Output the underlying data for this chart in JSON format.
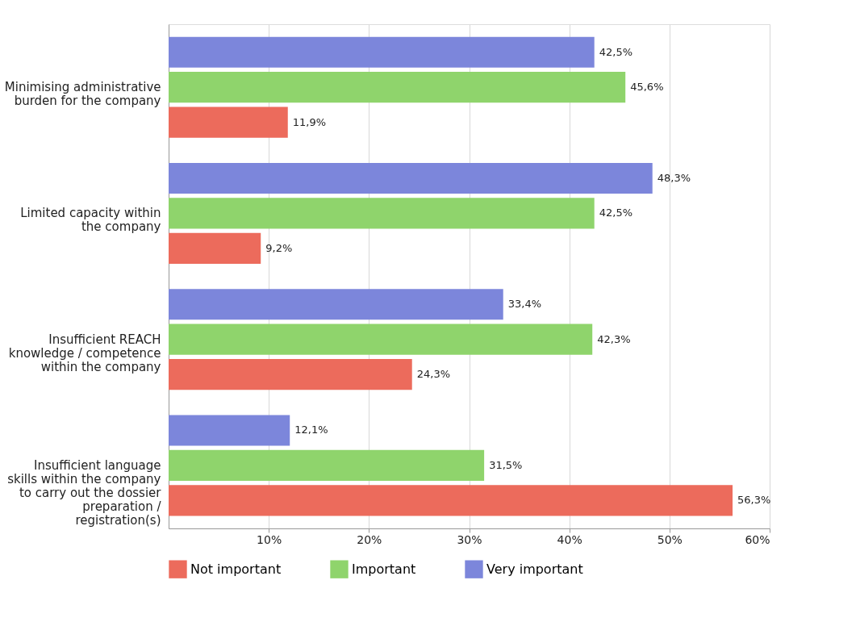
{
  "chart_data": {
    "type": "bar",
    "orientation": "horizontal",
    "categories": [
      "Minimising administrative burden for the company",
      "Limited capacity within the company",
      "Insufficient REACH knowledge / competence within the company",
      "Insufficient language skills within the company to carry out the dossier preparation / registration(s)"
    ],
    "series": [
      {
        "name": "Not important",
        "color": "#ec6b5c",
        "values": [
          11.9,
          9.2,
          24.3,
          56.3
        ],
        "value_labels": [
          "11,9%",
          "9,2%",
          "24,3%",
          "56,3%"
        ]
      },
      {
        "name": "Important",
        "color": "#8fd46c",
        "values": [
          45.6,
          42.5,
          42.3,
          31.5
        ],
        "value_labels": [
          "45,6%",
          "42,5%",
          "42,3%",
          "31,5%"
        ]
      },
      {
        "name": "Very important",
        "color": "#7c86db",
        "values": [
          42.5,
          48.3,
          33.4,
          12.1
        ],
        "value_labels": [
          "42,5%",
          "48,3%",
          "33,4%",
          "12,1%"
        ]
      }
    ],
    "xlim": [
      0,
      60
    ],
    "xticks": [
      {
        "value": 10,
        "label": "10%"
      },
      {
        "value": 20,
        "label": "20%"
      },
      {
        "value": 30,
        "label": "30%"
      },
      {
        "value": 40,
        "label": "40%"
      },
      {
        "value": 50,
        "label": "50%"
      },
      {
        "value": 60,
        "label": "60%"
      }
    ],
    "grid": "x",
    "legend": "bottom"
  }
}
